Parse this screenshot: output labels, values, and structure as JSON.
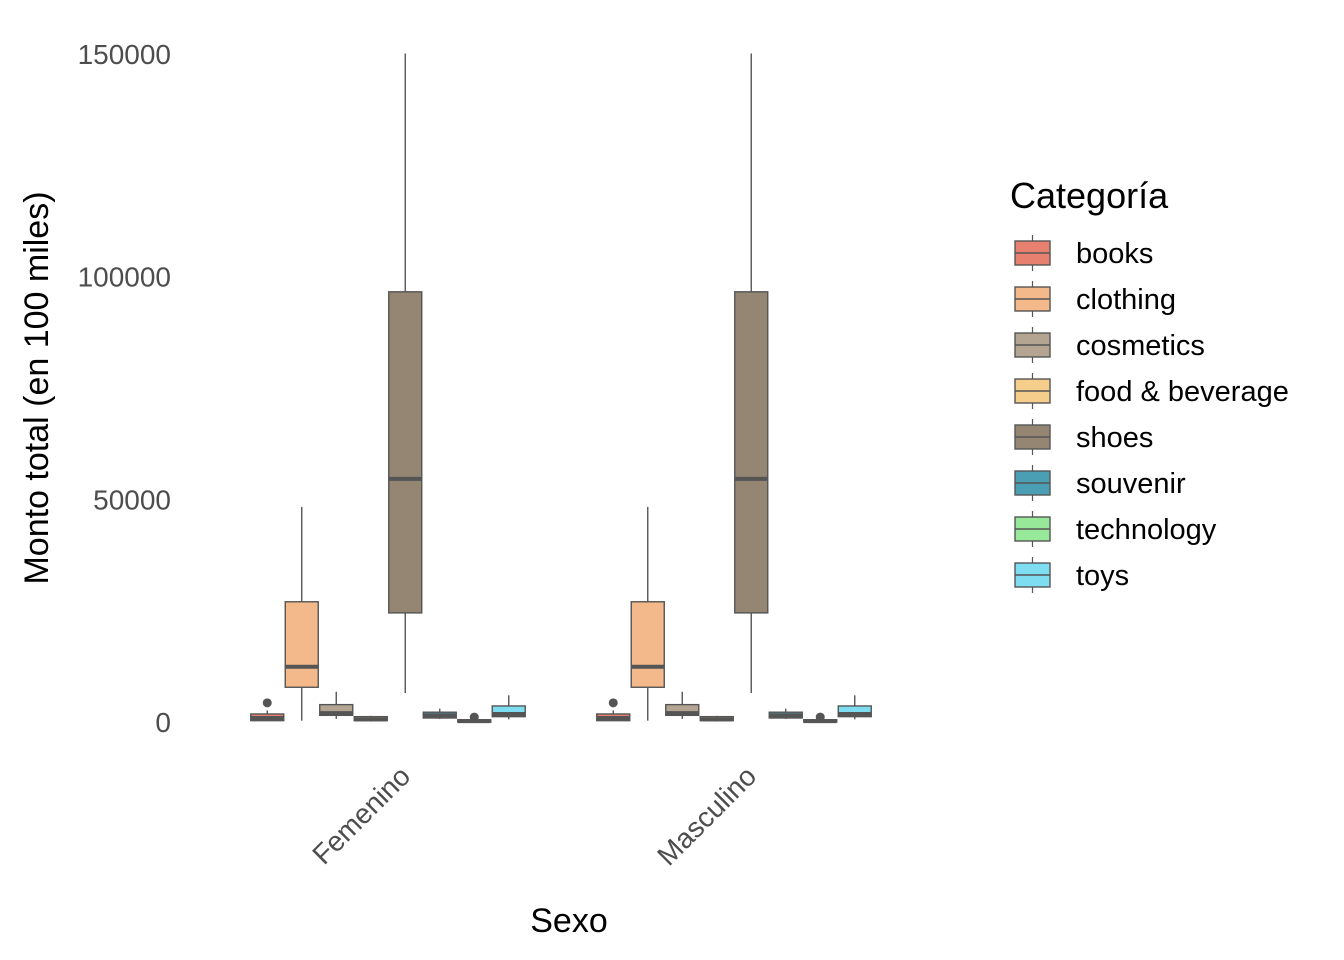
{
  "chart_data": {
    "type": "boxplot",
    "xlabel": "Sexo",
    "ylabel": "Monto total (en 100 miles)",
    "ylim": [
      -5000,
      152000
    ],
    "y_ticks": [
      0,
      50000,
      100000,
      150000
    ],
    "y_tick_labels": [
      "0",
      "50000",
      "100000",
      "150000"
    ],
    "grid": false,
    "legend": {
      "title": "Categoría",
      "position": "right"
    },
    "categories": [
      "Femenino",
      "Masculino"
    ],
    "series": [
      {
        "name": "books",
        "color": "#E8806F",
        "boxes": [
          {
            "min": 200,
            "q1": 300,
            "median": 900,
            "q3": 1800,
            "max": 2600,
            "outliers": [
              4300
            ]
          },
          {
            "min": 200,
            "q1": 300,
            "median": 900,
            "q3": 1800,
            "max": 2600,
            "outliers": [
              4300
            ]
          }
        ]
      },
      {
        "name": "clothing",
        "color": "#F4B98A",
        "boxes": [
          {
            "min": 300,
            "q1": 7800,
            "median": 12400,
            "q3": 27000,
            "max": 48300,
            "outliers": []
          },
          {
            "min": 300,
            "q1": 7800,
            "median": 12400,
            "q3": 27000,
            "max": 48300,
            "outliers": []
          }
        ]
      },
      {
        "name": "cosmetics",
        "color": "#B4A492",
        "boxes": [
          {
            "min": 700,
            "q1": 1500,
            "median": 2000,
            "q3": 3900,
            "max": 6800,
            "outliers": []
          },
          {
            "min": 700,
            "q1": 1500,
            "median": 2000,
            "q3": 3900,
            "max": 6800,
            "outliers": []
          }
        ]
      },
      {
        "name": "food & beverage",
        "color": "#F6CE8C",
        "boxes": [
          {
            "min": 100,
            "q1": 300,
            "median": 600,
            "q3": 1200,
            "max": 1400,
            "outliers": []
          },
          {
            "min": 100,
            "q1": 300,
            "median": 600,
            "q3": 1200,
            "max": 1400,
            "outliers": []
          }
        ]
      },
      {
        "name": "shoes",
        "color": "#958573",
        "boxes": [
          {
            "min": 6500,
            "q1": 24500,
            "median": 54600,
            "q3": 96600,
            "max": 150100,
            "outliers": []
          },
          {
            "min": 6500,
            "q1": 24500,
            "median": 54600,
            "q3": 96600,
            "max": 150100,
            "outliers": []
          }
        ]
      },
      {
        "name": "souvenir",
        "color": "#4A9FB5",
        "boxes": [
          {
            "min": 700,
            "q1": 900,
            "median": 1500,
            "q3": 2200,
            "max": 3000,
            "outliers": []
          },
          {
            "min": 700,
            "q1": 900,
            "median": 1500,
            "q3": 2200,
            "max": 3000,
            "outliers": []
          }
        ]
      },
      {
        "name": "technology",
        "color": "#98E89A",
        "boxes": [
          {
            "min": 0,
            "q1": 0,
            "median": 200,
            "q3": 500,
            "max": 700,
            "outliers": [
              1100
            ]
          },
          {
            "min": 0,
            "q1": 0,
            "median": 200,
            "q3": 500,
            "max": 700,
            "outliers": [
              1100
            ]
          }
        ]
      },
      {
        "name": "toys",
        "color": "#7FDDF2",
        "boxes": [
          {
            "min": 600,
            "q1": 1200,
            "median": 1800,
            "q3": 3600,
            "max": 6000,
            "outliers": []
          },
          {
            "min": 600,
            "q1": 1200,
            "median": 1800,
            "q3": 3600,
            "max": 6000,
            "outliers": []
          }
        ]
      }
    ]
  }
}
